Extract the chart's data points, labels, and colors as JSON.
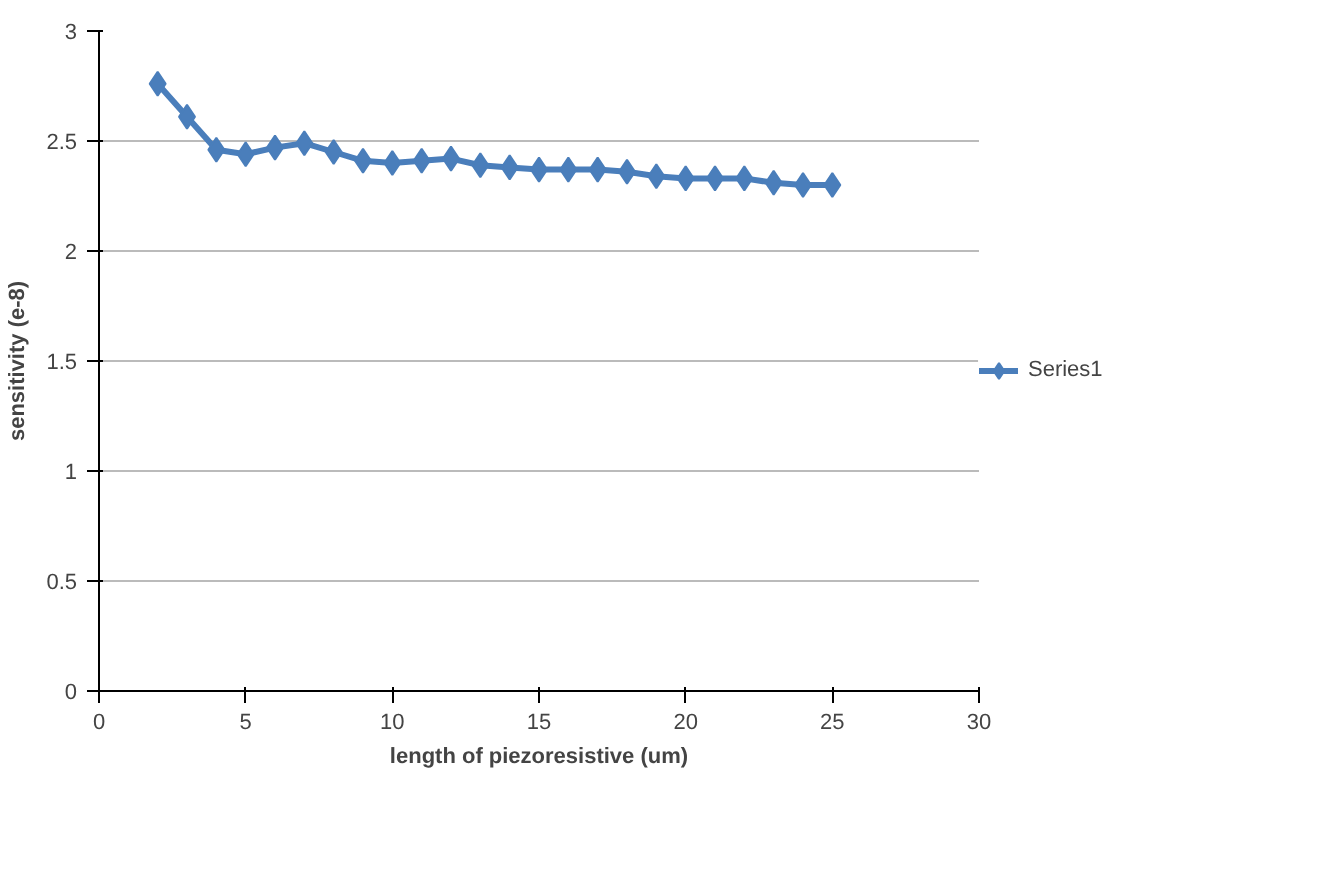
{
  "chart_data": {
    "type": "line",
    "xlabel": "length of piezoresistive (um)",
    "ylabel": "sensitivity (e-8)",
    "x": [
      2,
      3,
      4,
      5,
      6,
      7,
      8,
      9,
      10,
      11,
      12,
      13,
      14,
      15,
      16,
      17,
      18,
      19,
      20,
      21,
      22,
      23,
      24,
      25
    ],
    "series": [
      {
        "name": "Series1",
        "color": "#4a7ebb",
        "values": [
          2.76,
          2.61,
          2.46,
          2.44,
          2.47,
          2.49,
          2.45,
          2.41,
          2.4,
          2.41,
          2.42,
          2.39,
          2.38,
          2.37,
          2.37,
          2.37,
          2.36,
          2.34,
          2.33,
          2.33,
          2.33,
          2.31,
          2.3,
          2.3
        ]
      }
    ],
    "xlim": [
      0,
      30
    ],
    "ylim": [
      0,
      3
    ],
    "xticks": [
      0,
      5,
      10,
      15,
      20,
      25,
      30
    ],
    "yticks": [
      0,
      0.5,
      1,
      1.5,
      2,
      2.5,
      3
    ],
    "grid": "y",
    "legend": "right",
    "marker": "diamond",
    "line_style": "solid"
  }
}
